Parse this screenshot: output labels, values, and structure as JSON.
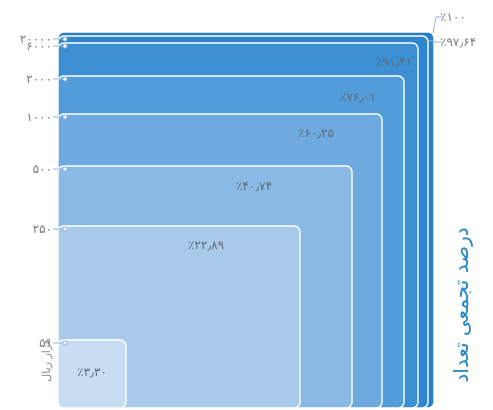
{
  "chart_data": {
    "type": "area",
    "description_style": "nested cumulative rectangles",
    "x_axis_title": "هزار ریال",
    "right_title": "درصد تجمعی تعداد",
    "thresholds": [
      "۵۰",
      "۲۵۰",
      "۵۰۰",
      "۱۰۰۰",
      "۲۰۰۰",
      "۶۰۰۰",
      "۲۰۰۰۰"
    ],
    "cumulative_percent": [
      3.3,
      22.89,
      40.74,
      60.25,
      76.01,
      91.41,
      97.64,
      100
    ],
    "percent_labels": [
      "٪۳٫۳۰",
      "٪۲۲٫۸۹",
      "٪۴۰٫۷۴",
      "٪۶۰٫۲۵",
      "٪۷۶٫۰۱",
      "٪۹۱٫۴۱",
      "٪۹۷٫۶۴",
      "٪۱۰۰"
    ],
    "colors": [
      "#c8ddf1",
      "#a9cbeb",
      "#8bb9e5",
      "#6eaadf",
      "#519cd9",
      "#3d8fd4",
      "#2f86cf",
      "#2a7fc9"
    ]
  }
}
